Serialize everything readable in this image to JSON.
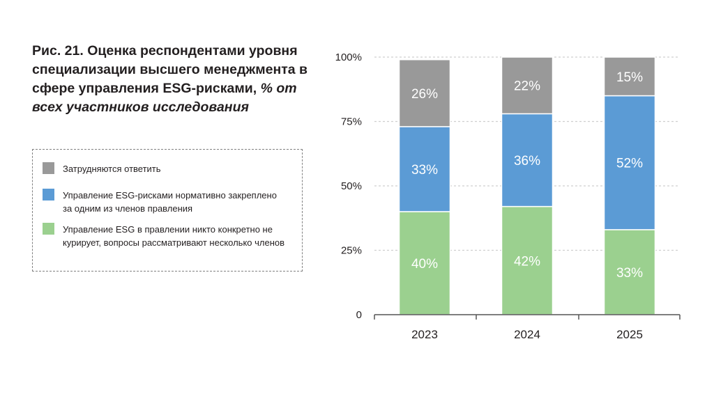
{
  "title": {
    "main": "Рис. 21. Оценка респондентами уровня специализации высшего менеджмента в сфере управления ESG-рисками,",
    "suffix": "% от всех участников исследования"
  },
  "colors": {
    "gray": "#999999",
    "blue": "#5b9bd5",
    "green": "#9bd08f",
    "label_on_bar": "#ffffff",
    "axis_text": "#231f20",
    "grid": "#cfcfcf"
  },
  "chart_data": {
    "type": "bar",
    "stacked": true,
    "categories": [
      "2023",
      "2024",
      "2025"
    ],
    "series": [
      {
        "name": "Управление ESG в правлении никто конкретно не курирует, вопросы рассматривают несколько членов",
        "color_key": "green",
        "values": [
          40,
          42,
          33
        ],
        "labels": [
          "40%",
          "42%",
          "33%"
        ]
      },
      {
        "name": "Управление ESG-рисками нормативно закреплено за одним из членов правления",
        "color_key": "blue",
        "values": [
          33,
          36,
          52
        ],
        "labels": [
          "33%",
          "36%",
          "52%"
        ]
      },
      {
        "name": "Затрудняются ответить",
        "color_key": "gray",
        "values": [
          26,
          22,
          15
        ],
        "labels": [
          "26%",
          "22%",
          "15%"
        ]
      }
    ],
    "y_ticks": [
      {
        "value": 0,
        "label": "0"
      },
      {
        "value": 25,
        "label": "25%"
      },
      {
        "value": 50,
        "label": "50%"
      },
      {
        "value": 75,
        "label": "75%"
      },
      {
        "value": 100,
        "label": "100%"
      }
    ],
    "ylim": [
      0,
      100
    ],
    "grid": true,
    "legend_position": "left"
  },
  "legend": {
    "items": [
      {
        "label": "Затрудняются ответить",
        "color_key": "gray"
      },
      {
        "label": "Управление ESG-рисками нормативно закреплено за одним из членов правления",
        "color_key": "blue"
      },
      {
        "label": "Управление ESG в правлении никто конкретно не курирует, вопросы рассматривают несколько членов",
        "color_key": "green"
      }
    ]
  }
}
